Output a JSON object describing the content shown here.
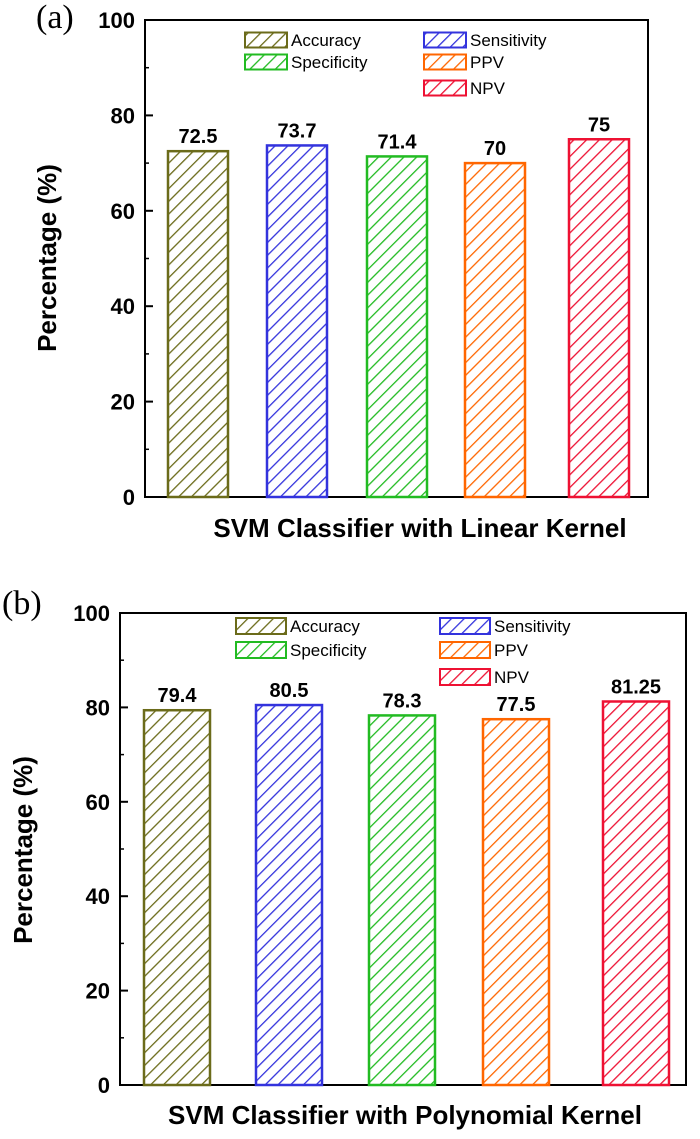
{
  "chart_data": [
    {
      "type": "bar",
      "panel": "(a)",
      "categories": [
        "Accuracy",
        "Sensitivity",
        "Specificity",
        "PPV",
        "NPV"
      ],
      "values": [
        72.5,
        73.7,
        71.4,
        70,
        75
      ],
      "value_labels": [
        "72.5",
        "73.7",
        "71.4",
        "70",
        "75"
      ],
      "colors": [
        "#6b6b1a",
        "#3333dd",
        "#22bb22",
        "#ff6600",
        "#ee1133"
      ],
      "legend": [
        "Accuracy",
        "Sensitivity",
        "Specificity",
        "PPV",
        "NPV"
      ],
      "xlabel": "SVM Classifier with Linear Kernel",
      "ylabel": "Percentage (%)",
      "ylim": [
        0,
        100
      ],
      "yticks": [
        0,
        20,
        40,
        60,
        80,
        100
      ]
    },
    {
      "type": "bar",
      "panel": "(b)",
      "categories": [
        "Accuracy",
        "Sensitivity",
        "Specificity",
        "PPV",
        "NPV"
      ],
      "values": [
        79.4,
        80.5,
        78.3,
        77.5,
        81.25
      ],
      "value_labels": [
        "79.4",
        "80.5",
        "78.3",
        "77.5",
        "81.25"
      ],
      "colors": [
        "#6b6b1a",
        "#3333dd",
        "#22bb22",
        "#ff6600",
        "#ee1133"
      ],
      "legend": [
        "Accuracy",
        "Sensitivity",
        "Specificity",
        "PPV",
        "NPV"
      ],
      "xlabel": "SVM Classifier with Polynomial Kernel",
      "ylabel": "Percentage (%)",
      "ylim": [
        0,
        100
      ],
      "yticks": [
        0,
        20,
        40,
        60,
        80,
        100
      ]
    }
  ]
}
